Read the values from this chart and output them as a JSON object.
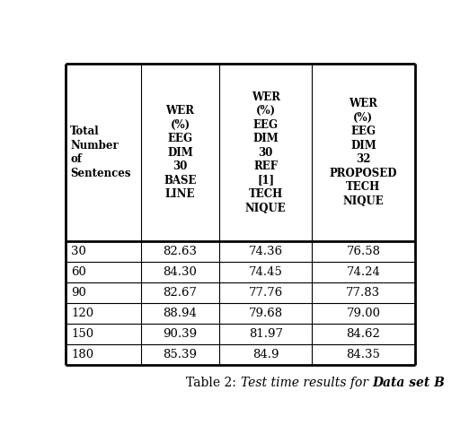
{
  "col_headers": [
    "Total\nNumber\nof\nSentences",
    "WER\n(%)\nEEG\nDIM\n30\nBASE\nLINE",
    "WER\n(%)\nEEG\nDIM\n30\nREF\n[1]\nTECH\nNIQUE",
    "WER\n(%)\nEEG\nDIM\n32\nPROPOSED\nTECH\nNIQUE"
  ],
  "rows": [
    [
      "30",
      "82.63",
      "74.36",
      "76.58"
    ],
    [
      "60",
      "84.30",
      "74.45",
      "74.24"
    ],
    [
      "90",
      "82.67",
      "77.76",
      "77.83"
    ],
    [
      "120",
      "88.94",
      "79.68",
      "79.00"
    ],
    [
      "150",
      "90.39",
      "81.97",
      "84.62"
    ],
    [
      "180",
      "85.39",
      "84.9",
      "84.35"
    ]
  ],
  "caption_normal": "Table 2: ",
  "caption_italic": "Test time results for ",
  "caption_bold_italic": "Data set B",
  "background_color": "#ffffff",
  "font_size_header": 8.5,
  "font_size_body": 9.5,
  "font_size_caption": 10.0
}
